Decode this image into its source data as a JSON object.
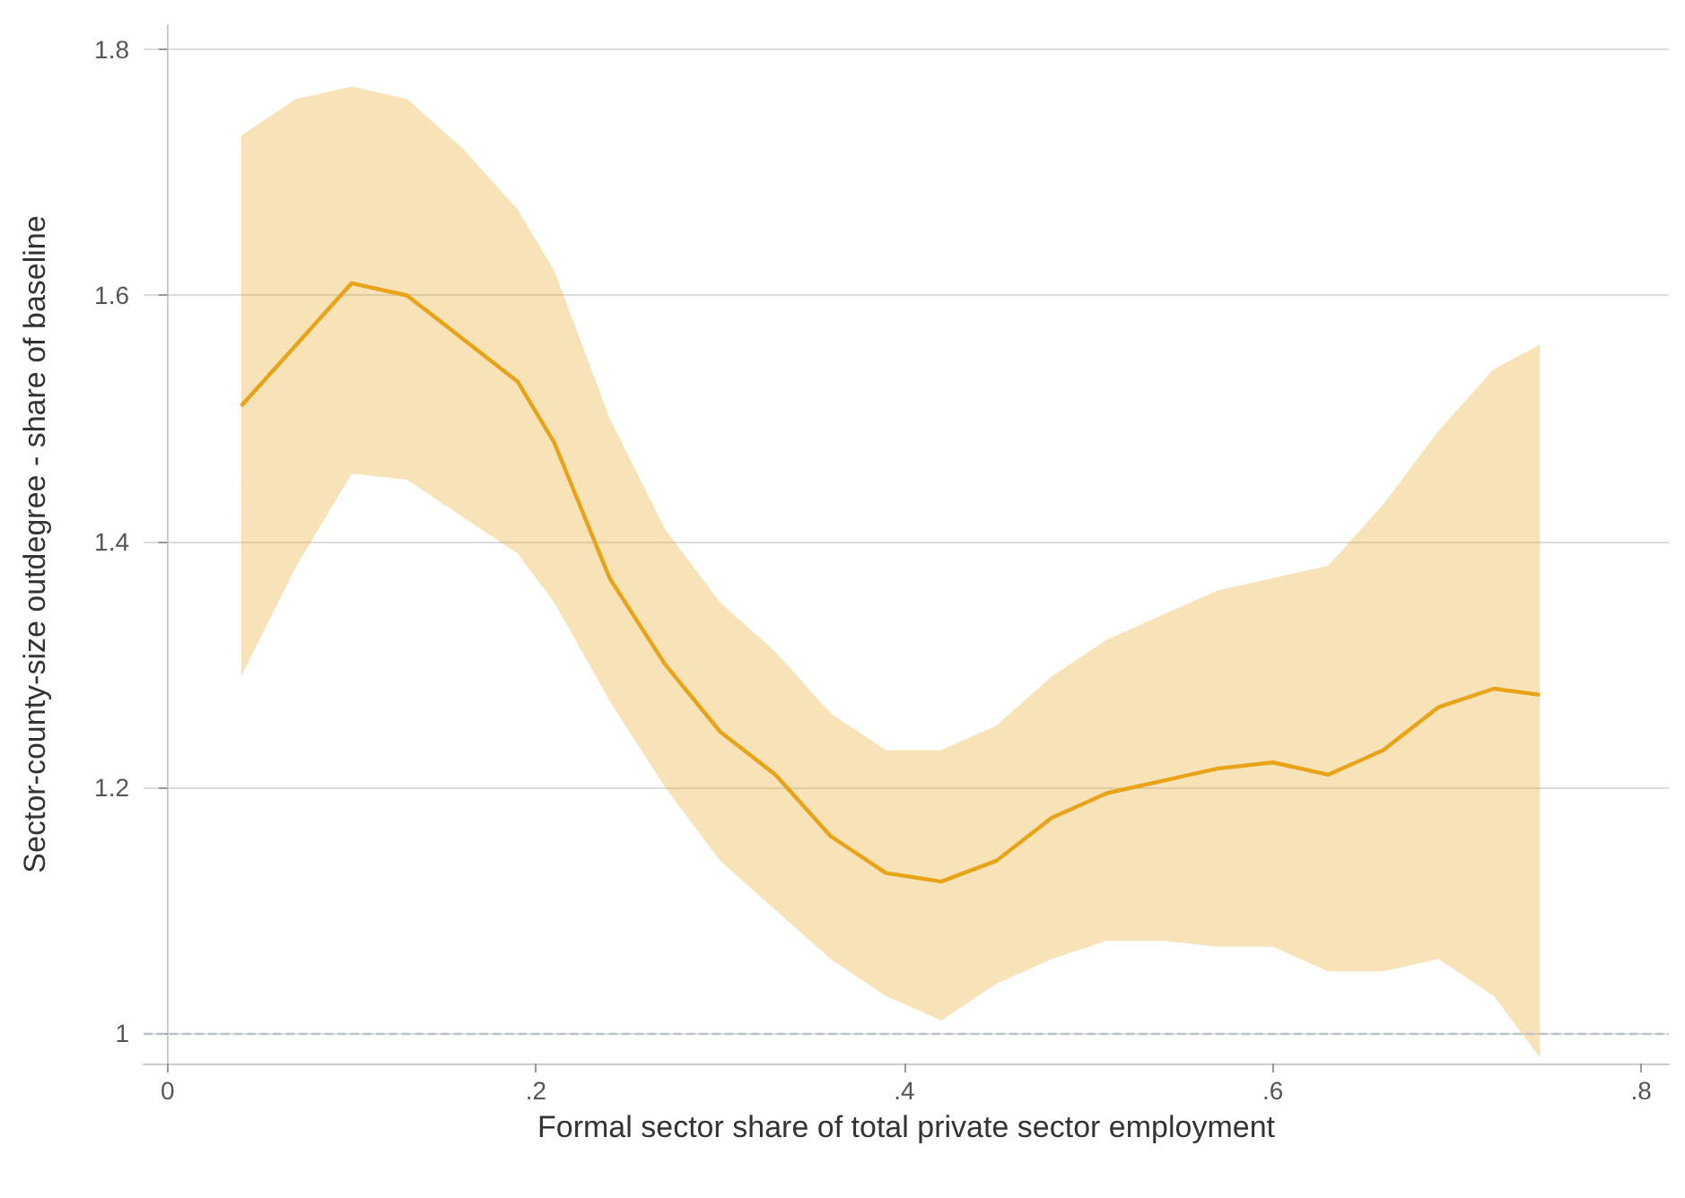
{
  "chart_data": {
    "type": "line",
    "xlabel": "Formal sector share of total private sector employment",
    "ylabel": "Sector-county-size outdegree - share of baseline",
    "x": [
      0.04,
      0.07,
      0.1,
      0.13,
      0.16,
      0.19,
      0.21,
      0.24,
      0.27,
      0.3,
      0.33,
      0.36,
      0.39,
      0.42,
      0.45,
      0.48,
      0.51,
      0.54,
      0.57,
      0.6,
      0.63,
      0.66,
      0.69,
      0.72,
      0.745
    ],
    "series": [
      {
        "color": "#e8a317",
        "values": [
          1.51,
          1.56,
          1.61,
          1.6,
          1.565,
          1.53,
          1.48,
          1.37,
          1.3,
          1.245,
          1.21,
          1.16,
          1.13,
          1.123,
          1.14,
          1.175,
          1.195,
          1.205,
          1.215,
          1.22,
          1.21,
          1.23,
          1.265,
          1.28,
          1.275
        ],
        "lower": [
          1.29,
          1.38,
          1.455,
          1.45,
          1.42,
          1.39,
          1.35,
          1.27,
          1.2,
          1.14,
          1.1,
          1.06,
          1.03,
          1.01,
          1.04,
          1.06,
          1.075,
          1.075,
          1.07,
          1.07,
          1.05,
          1.05,
          1.06,
          1.03,
          0.98
        ],
        "upper": [
          1.73,
          1.76,
          1.77,
          1.76,
          1.72,
          1.67,
          1.62,
          1.5,
          1.41,
          1.35,
          1.31,
          1.26,
          1.23,
          1.23,
          1.25,
          1.29,
          1.32,
          1.34,
          1.36,
          1.37,
          1.38,
          1.43,
          1.49,
          1.54,
          1.56
        ]
      }
    ],
    "xlim": [
      -0.013,
      0.815
    ],
    "xticks": [
      0,
      {
        "value": 0.2,
        "label": ".2"
      },
      {
        "value": 0.4,
        "label": ".4"
      },
      {
        "value": 0.6,
        "label": ".6"
      },
      {
        "value": 0.8,
        "label": ".8"
      }
    ],
    "ylim": [
      0.975,
      1.82
    ],
    "yticks": [
      1,
      1.2,
      1.4,
      1.6,
      1.8
    ],
    "ref_lines": [
      {
        "axis": "y",
        "value": 1,
        "color": "#b8c4cc",
        "line_style": "dashed"
      }
    ],
    "grid": "y",
    "marker": "none",
    "line_style": "solid"
  }
}
